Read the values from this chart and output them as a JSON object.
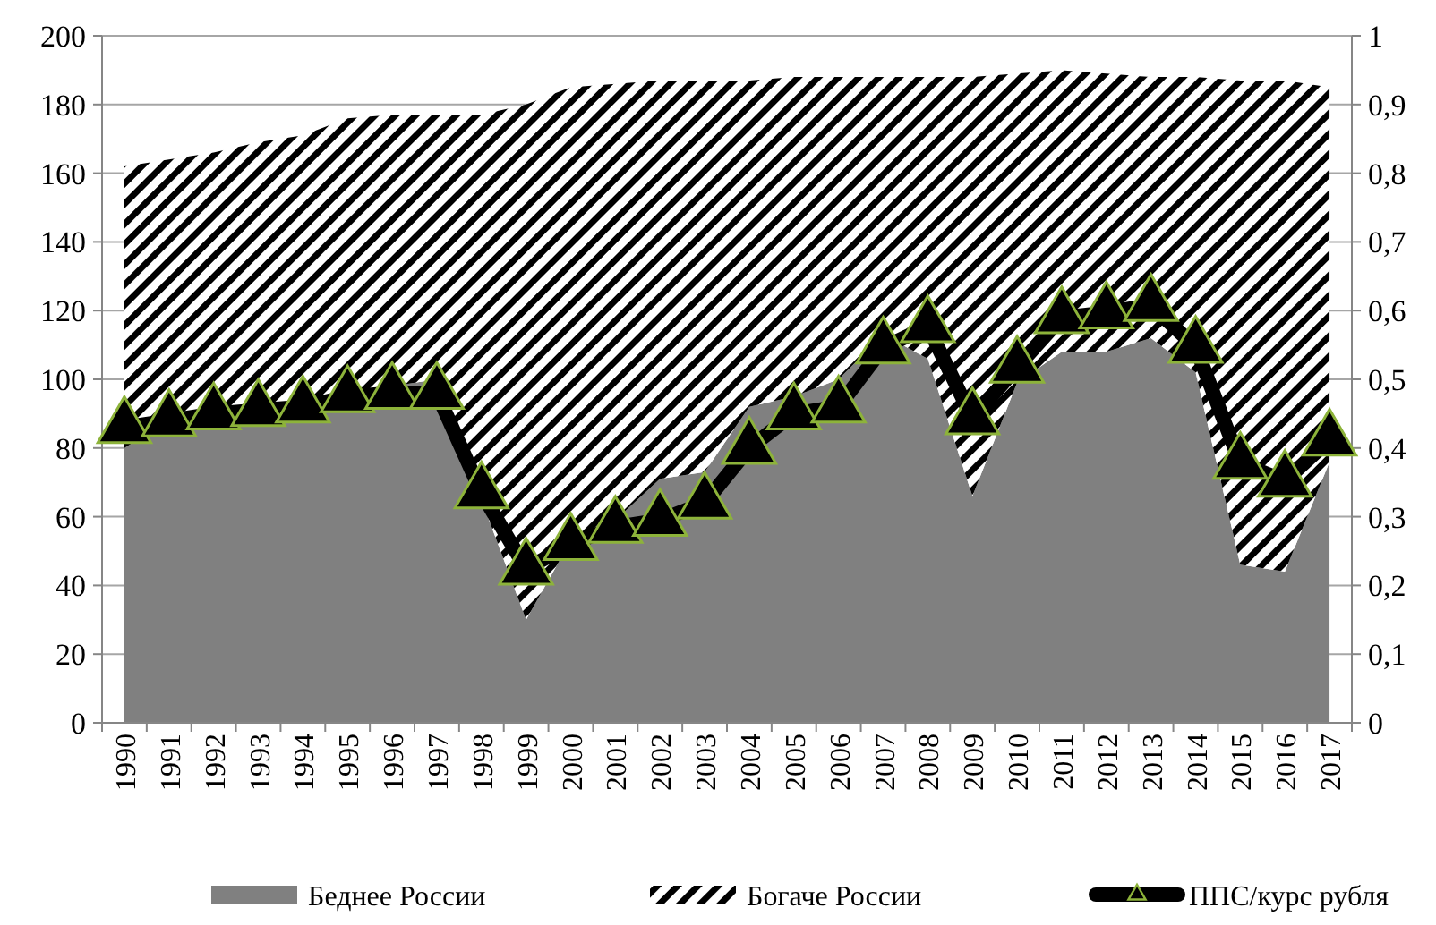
{
  "chart_data": {
    "type": "area",
    "stacked": true,
    "categories": [
      "1990",
      "1991",
      "1992",
      "1993",
      "1994",
      "1995",
      "1996",
      "1997",
      "1998",
      "1999",
      "2000",
      "2001",
      "2002",
      "2003",
      "2004",
      "2005",
      "2006",
      "2007",
      "2008",
      "2009",
      "2010",
      "2011",
      "2012",
      "2013",
      "2014",
      "2015",
      "2016",
      "2017"
    ],
    "series": [
      {
        "name": "Беднее России",
        "color": "#808080",
        "values": [
          80,
          88,
          90,
          92,
          94,
          96,
          98,
          100,
          65,
          30,
          53,
          59,
          71,
          73,
          92,
          95,
          100,
          113,
          106,
          66,
          99,
          108,
          108,
          112,
          102,
          46,
          44,
          76
        ]
      },
      {
        "name": "Богаче России",
        "color": "#000000",
        "values": [
          82,
          76,
          76,
          77,
          77,
          80,
          79,
          77,
          112,
          150,
          132,
          127,
          116,
          114,
          95,
          93,
          88,
          75,
          82,
          122,
          90,
          82,
          81,
          76,
          86,
          141,
          143,
          109
        ]
      },
      {
        "name": "ППС/курс рубля",
        "type": "line",
        "axis": "y2",
        "color": "#000000",
        "marker": "triangle",
        "values": [
          0.43,
          0.44,
          0.45,
          0.455,
          0.46,
          0.475,
          0.48,
          0.48,
          0.335,
          0.224,
          0.26,
          0.285,
          0.295,
          0.32,
          0.4,
          0.45,
          0.46,
          0.546,
          0.577,
          0.443,
          0.518,
          0.59,
          0.597,
          0.608,
          0.547,
          0.378,
          0.352,
          0.412
        ]
      }
    ],
    "ylim": [
      0,
      200
    ],
    "yticks": [
      0,
      20,
      40,
      60,
      80,
      100,
      120,
      140,
      160,
      180,
      200
    ],
    "y2lim": [
      0,
      1
    ],
    "y2ticks": [
      0,
      {
        "value": 0.1,
        "label": "0,1"
      },
      {
        "value": 0.2,
        "label": "0,2"
      },
      {
        "value": 0.3,
        "label": "0,3"
      },
      {
        "value": 0.4,
        "label": "0,4"
      },
      {
        "value": 0.5,
        "label": "0,5"
      },
      {
        "value": 0.6,
        "label": "0,6"
      },
      {
        "value": 0.7,
        "label": "0,7"
      },
      {
        "value": 0.8,
        "label": "0,8"
      },
      {
        "value": 0.9,
        "label": "0,9"
      },
      1
    ],
    "grid": "y",
    "legend": "bottom"
  }
}
